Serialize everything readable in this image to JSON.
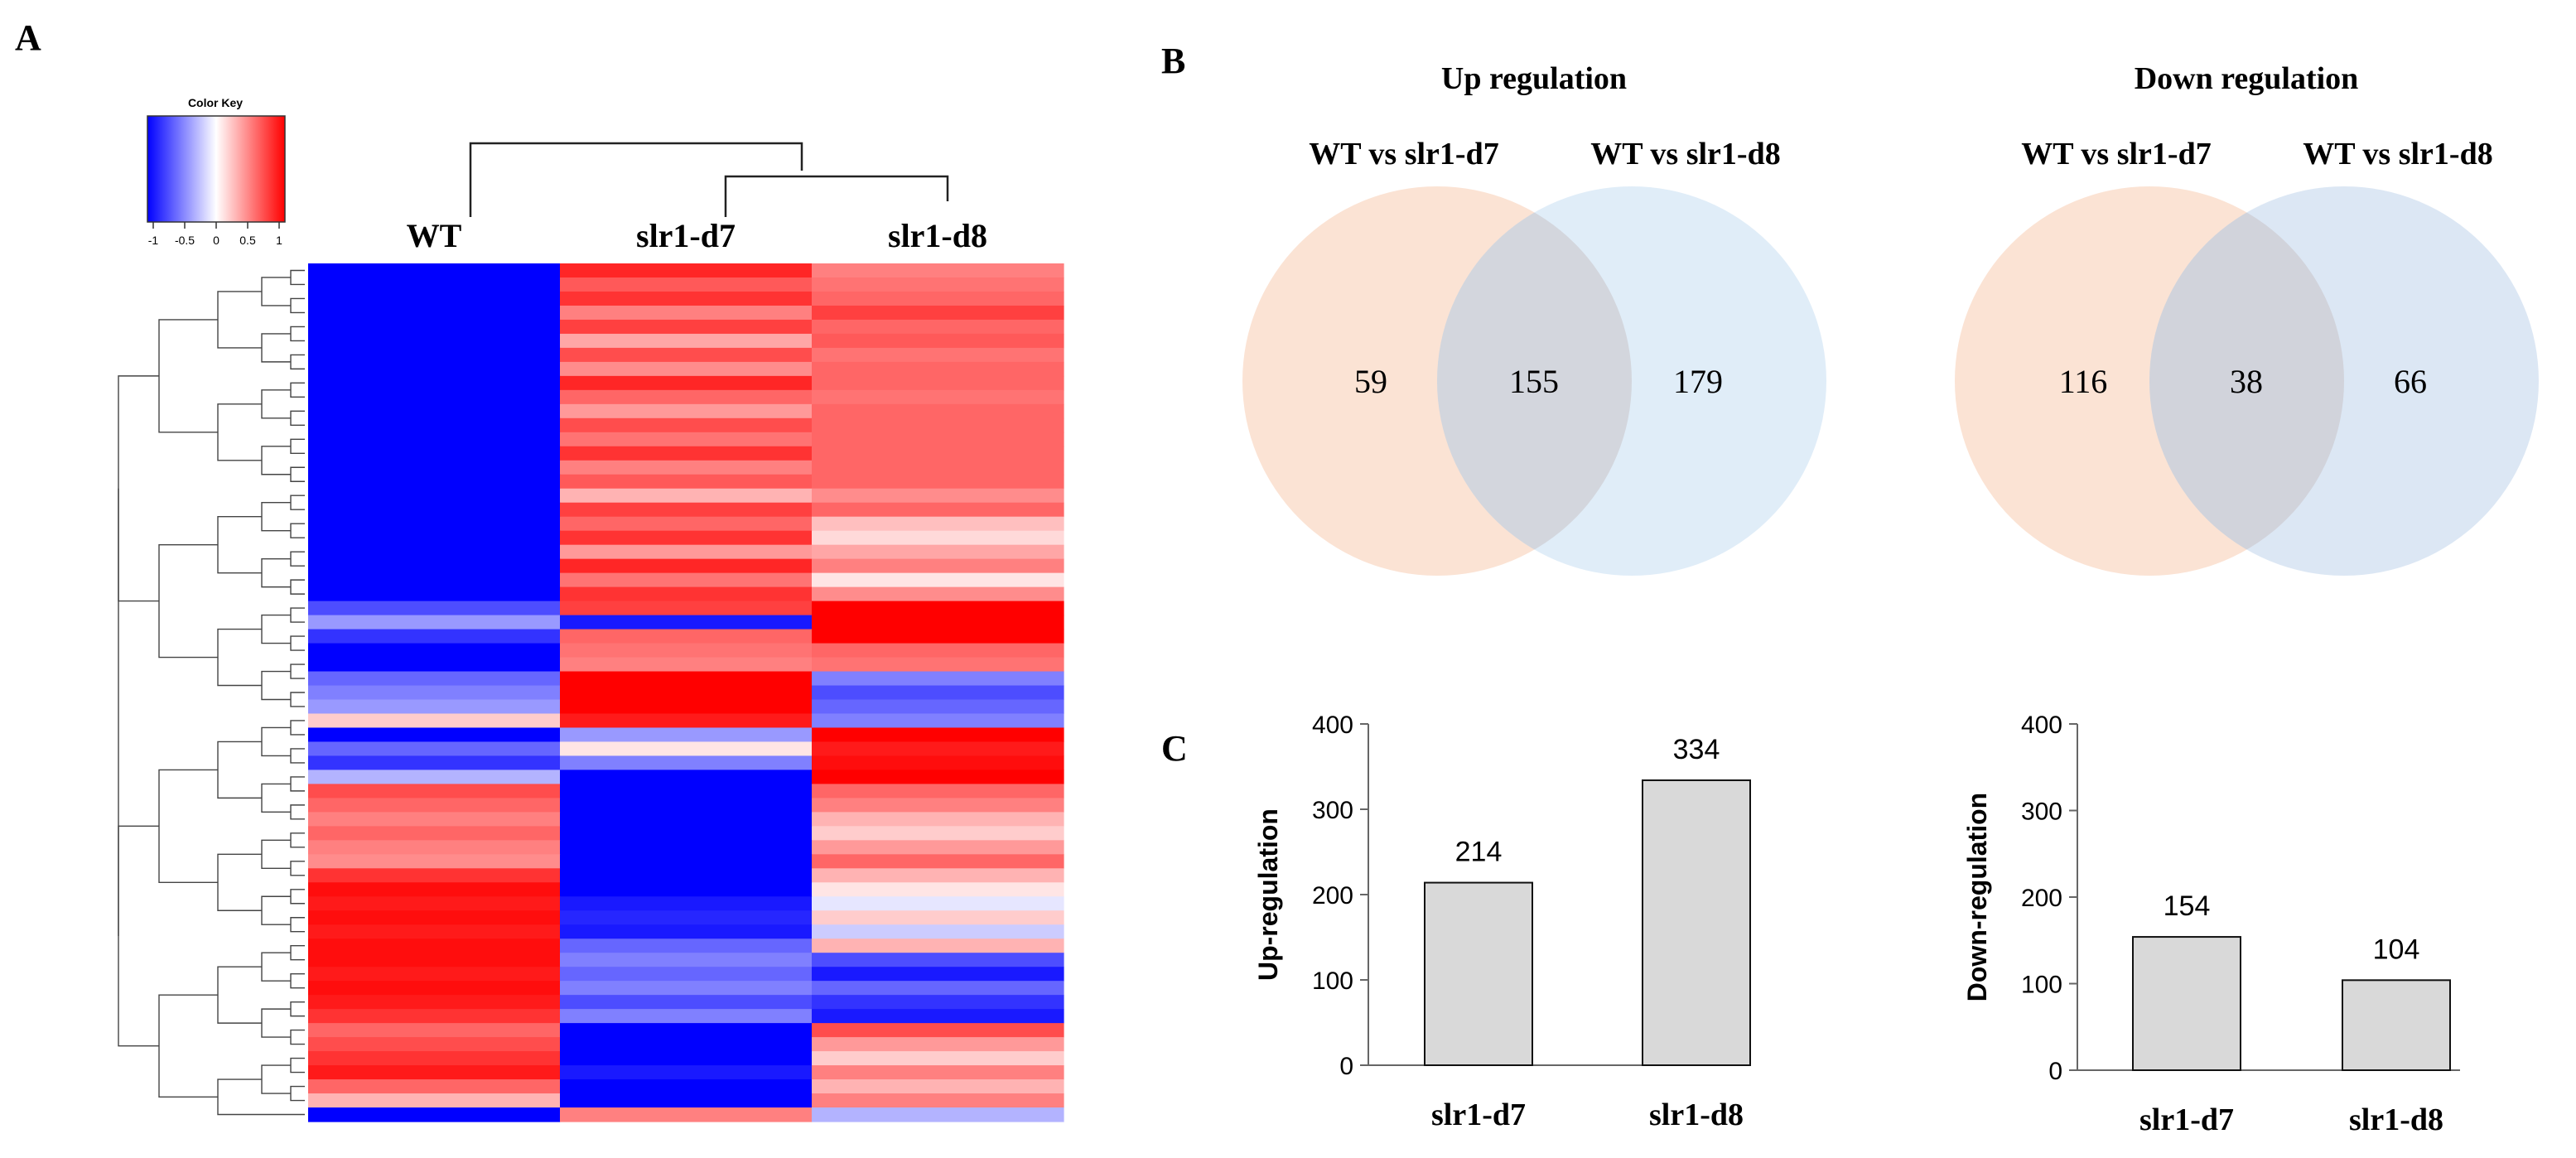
{
  "panels": {
    "a": "A",
    "b": "B",
    "c": "C"
  },
  "color_key": {
    "title": "Color Key",
    "ticks": [
      "-1",
      "-0.5",
      "0",
      "0.5",
      "1"
    ]
  },
  "chart_data": [
    {
      "type": "heatmap",
      "id": "heatmap",
      "columns": [
        "WT",
        "slr1-d7",
        "slr1-d8"
      ],
      "scale_min": -1,
      "scale_max": 1,
      "colors": {
        "low": "#0000ff",
        "mid": "#ffffff",
        "high": "#ff0000"
      },
      "rows": [
        [
          -1,
          0.85,
          0.5
        ],
        [
          -1,
          0.65,
          0.55
        ],
        [
          -1,
          0.8,
          0.6
        ],
        [
          -1,
          0.5,
          0.75
        ],
        [
          -1,
          0.75,
          0.6
        ],
        [
          -1,
          0.35,
          0.65
        ],
        [
          -1,
          0.7,
          0.55
        ],
        [
          -1,
          0.45,
          0.6
        ],
        [
          -1,
          0.85,
          0.6
        ],
        [
          -1,
          0.6,
          0.55
        ],
        [
          -1,
          0.4,
          0.6
        ],
        [
          -1,
          0.7,
          0.6
        ],
        [
          -1,
          0.55,
          0.6
        ],
        [
          -1,
          0.8,
          0.6
        ],
        [
          -1,
          0.5,
          0.6
        ],
        [
          -1,
          0.65,
          0.6
        ],
        [
          -1,
          0.3,
          0.45
        ],
        [
          -1,
          0.75,
          0.6
        ],
        [
          -1,
          0.6,
          0.25
        ],
        [
          -1,
          0.8,
          0.15
        ],
        [
          -1,
          0.4,
          0.35
        ],
        [
          -1,
          0.85,
          0.5
        ],
        [
          -1,
          0.55,
          0.1
        ],
        [
          -1,
          0.8,
          0.45
        ],
        [
          -0.7,
          0.75,
          1
        ],
        [
          -0.4,
          -0.9,
          1
        ],
        [
          -0.8,
          0.6,
          1
        ],
        [
          -1,
          0.55,
          0.6
        ],
        [
          -1,
          0.5,
          0.55
        ],
        [
          -0.6,
          1,
          -0.5
        ],
        [
          -0.5,
          1,
          -0.7
        ],
        [
          -0.4,
          1,
          -0.6
        ],
        [
          0.2,
          0.9,
          -0.5
        ],
        [
          -1,
          -0.4,
          1
        ],
        [
          -0.6,
          0.1,
          0.9
        ],
        [
          -0.8,
          -0.5,
          0.95
        ],
        [
          -0.3,
          -1,
          1
        ],
        [
          0.7,
          -1,
          0.6
        ],
        [
          0.6,
          -1,
          0.5
        ],
        [
          0.5,
          -1,
          0.3
        ],
        [
          0.6,
          -1,
          0.2
        ],
        [
          0.5,
          -1,
          0.4
        ],
        [
          0.45,
          -1,
          0.6
        ],
        [
          0.8,
          -1,
          0.3
        ],
        [
          0.95,
          -1,
          0.1
        ],
        [
          0.9,
          -0.9,
          -0.1
        ],
        [
          0.95,
          -0.85,
          0.2
        ],
        [
          0.9,
          -0.9,
          -0.2
        ],
        [
          0.95,
          -0.6,
          0.3
        ],
        [
          0.95,
          -0.5,
          -0.7
        ],
        [
          0.9,
          -0.6,
          -0.9
        ],
        [
          0.95,
          -0.5,
          -0.6
        ],
        [
          0.9,
          -0.7,
          -0.8
        ],
        [
          0.8,
          -0.5,
          -0.9
        ],
        [
          0.6,
          -1,
          0.7
        ],
        [
          0.7,
          -1,
          0.4
        ],
        [
          0.8,
          -1,
          0.2
        ],
        [
          0.9,
          -0.9,
          0.5
        ],
        [
          0.6,
          -1,
          0.3
        ],
        [
          0.3,
          -1,
          0.5
        ],
        [
          -1,
          0.5,
          -0.3
        ]
      ]
    },
    {
      "type": "venn",
      "id": "venn-up",
      "title": "Up regulation",
      "sets": [
        "WT vs slr1-d7",
        "WT vs slr1-d8"
      ],
      "regions": {
        "left_only": 59,
        "overlap": 155,
        "right_only": 179
      },
      "colors": [
        "#fbe3d4",
        "#daeaf7"
      ]
    },
    {
      "type": "venn",
      "id": "venn-down",
      "title": "Down regulation",
      "sets": [
        "WT vs slr1-d7",
        "WT vs slr1-d8"
      ],
      "regions": {
        "left_only": 116,
        "overlap": 38,
        "right_only": 66
      },
      "colors": [
        "#fbe3d4",
        "#d6e3f2"
      ]
    },
    {
      "type": "bar",
      "id": "bar-up",
      "categories": [
        "slr1-d7",
        "slr1-d8"
      ],
      "values": [
        214,
        334
      ],
      "ylabel": "Up-regulation",
      "ylim": [
        0,
        400
      ],
      "yticks": [
        0,
        100,
        200,
        300,
        400
      ],
      "bar_color": "#d9d9d9"
    },
    {
      "type": "bar",
      "id": "bar-down",
      "categories": [
        "slr1-d7",
        "slr1-d8"
      ],
      "values": [
        154,
        104
      ],
      "ylabel": "Down-regulation",
      "ylim": [
        0,
        400
      ],
      "yticks": [
        0,
        100,
        200,
        300,
        400
      ],
      "bar_color": "#d9d9d9"
    }
  ]
}
